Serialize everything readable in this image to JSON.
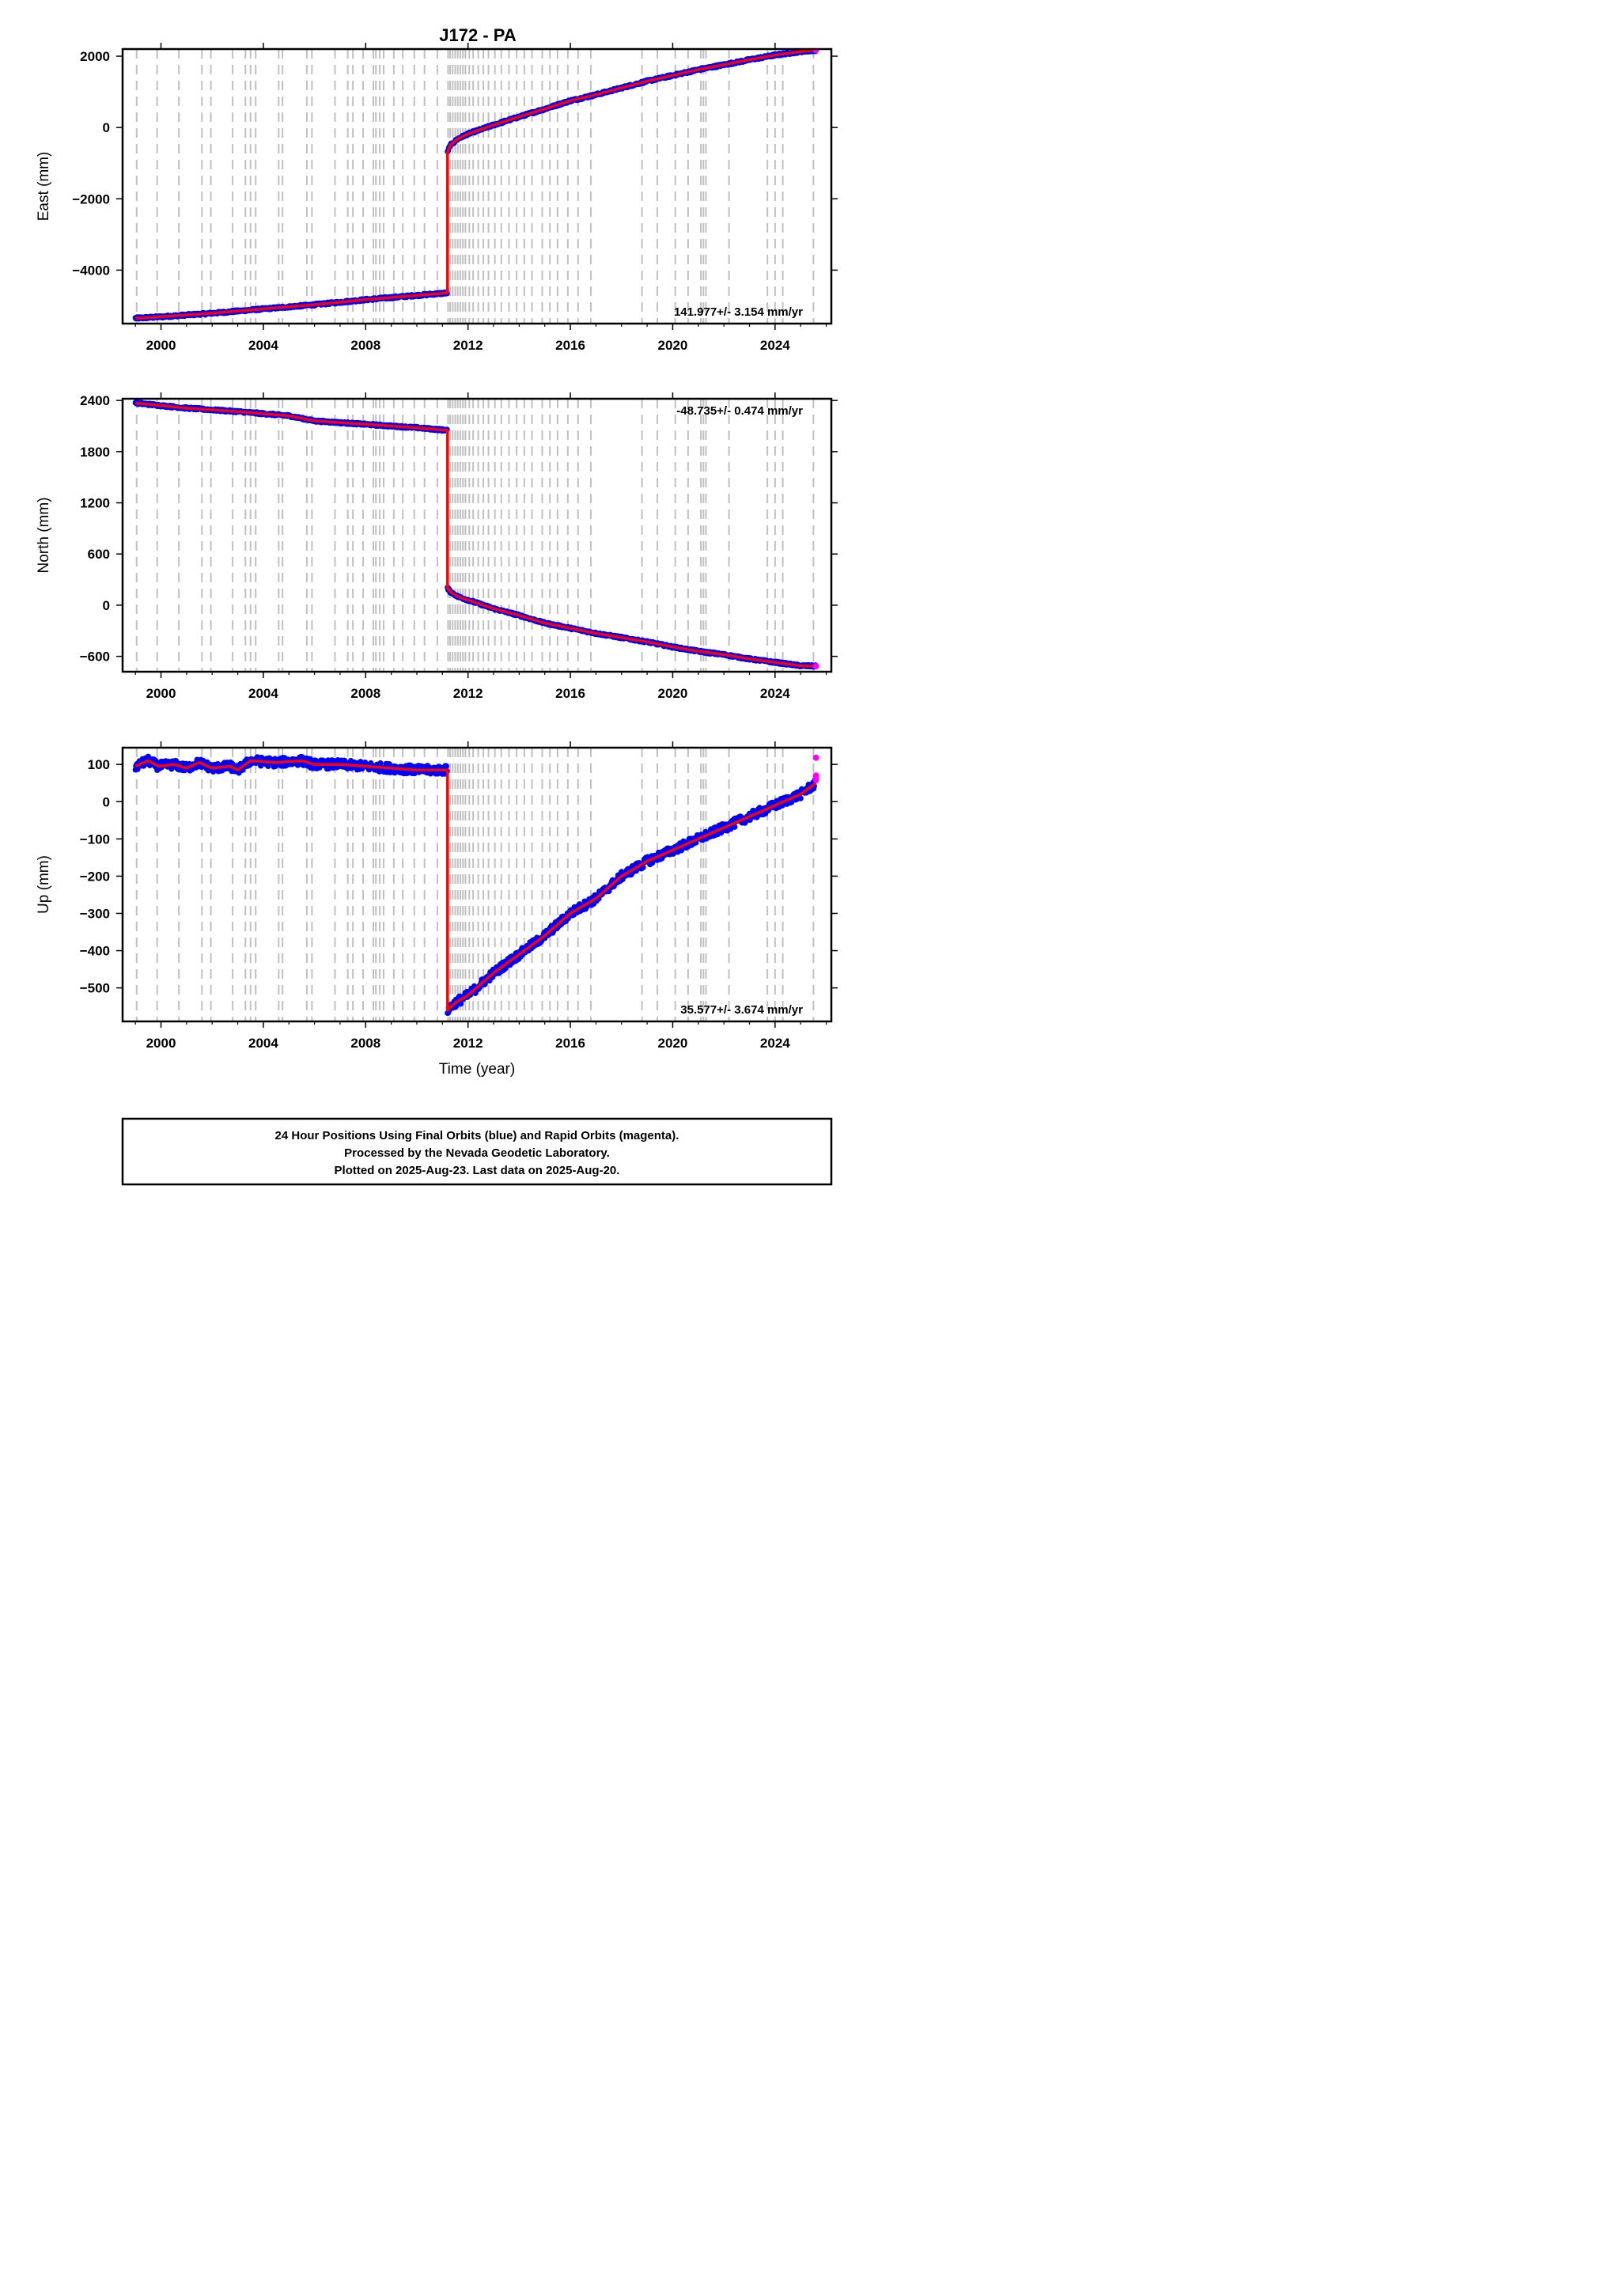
{
  "title": "J172 - PA",
  "footer": {
    "line1": "24 Hour Positions Using Final Orbits (blue) and Rapid Orbits (magenta).",
    "line2": "Processed by the Nevada Geodetic Laboratory.",
    "line3": "Plotted on 2025-Aug-23. Last data on 2025-Aug-20."
  },
  "colors": {
    "final_orbits": "#0000ff",
    "rapid_orbits": "#ff00ff",
    "model": "#ff0000",
    "equipment_change_lines": "#c0c0c0"
  },
  "chart_data": [
    {
      "type": "scatter",
      "ylabel": "East (mm)",
      "xlabel": "",
      "xlim": [
        1998.5,
        2026.2
      ],
      "ylim": [
        -5500,
        2200
      ],
      "yticks": [
        2000,
        0,
        -2000,
        -4000
      ],
      "ytick_labels": [
        "2000",
        "0",
        "−2000",
        "−4000"
      ],
      "xticks": [
        2000,
        2004,
        2008,
        2012,
        2016,
        2020,
        2024
      ],
      "rate_label": "141.977+/- 3.154 mm/yr",
      "rate_position": "bottom-right",
      "grid": false,
      "series": [
        {
          "points": [
            [
              1999.0,
              -5350
            ],
            [
              2000.0,
              -5310
            ],
            [
              2002.0,
              -5210
            ],
            [
              2004.0,
              -5090
            ],
            [
              2006.0,
              -4970
            ],
            [
              2008.0,
              -4830
            ],
            [
              2010.0,
              -4710
            ],
            [
              2011.2,
              -4640
            ],
            [
              2011.2,
              -700
            ],
            [
              2011.3,
              -500
            ],
            [
              2011.6,
              -320
            ],
            [
              2012.0,
              -180
            ],
            [
              2013.0,
              70
            ],
            [
              2014.0,
              300
            ],
            [
              2015.0,
              520
            ],
            [
              2016.0,
              750
            ],
            [
              2017.0,
              920
            ],
            [
              2018.0,
              1110
            ],
            [
              2019.0,
              1300
            ],
            [
              2020.0,
              1460
            ],
            [
              2021.0,
              1620
            ],
            [
              2022.0,
              1760
            ],
            [
              2023.0,
              1900
            ],
            [
              2024.0,
              2030
            ],
            [
              2025.0,
              2130
            ],
            [
              2025.6,
              2170
            ]
          ]
        }
      ],
      "rapid_points": [
        [
          2025.6,
          2170
        ]
      ]
    },
    {
      "type": "scatter",
      "ylabel": "North (mm)",
      "xlabel": "",
      "xlim": [
        1998.5,
        2026.2
      ],
      "ylim": [
        -780,
        2420
      ],
      "yticks": [
        2400,
        1800,
        1200,
        600,
        0,
        -600
      ],
      "ytick_labels": [
        "2400",
        "1800",
        "1200",
        "600",
        "0",
        "−600"
      ],
      "xticks": [
        2000,
        2004,
        2008,
        2012,
        2016,
        2020,
        2024
      ],
      "rate_label": "-48.735+/- 0.474 mm/yr",
      "rate_position": "top-right",
      "grid": false,
      "series": [
        {
          "points": [
            [
              1999.0,
              2370
            ],
            [
              2001.0,
              2310
            ],
            [
              2003.0,
              2270
            ],
            [
              2005.0,
              2220
            ],
            [
              2006.0,
              2160
            ],
            [
              2008.0,
              2120
            ],
            [
              2010.0,
              2080
            ],
            [
              2011.2,
              2050
            ],
            [
              2011.2,
              200
            ],
            [
              2011.3,
              160
            ],
            [
              2011.6,
              100
            ],
            [
              2012.0,
              60
            ],
            [
              2013.0,
              -40
            ],
            [
              2014.0,
              -120
            ],
            [
              2015.0,
              -210
            ],
            [
              2016.0,
              -270
            ],
            [
              2017.0,
              -330
            ],
            [
              2018.0,
              -380
            ],
            [
              2019.0,
              -430
            ],
            [
              2020.0,
              -490
            ],
            [
              2021.0,
              -540
            ],
            [
              2022.0,
              -580
            ],
            [
              2023.0,
              -630
            ],
            [
              2024.0,
              -670
            ],
            [
              2025.0,
              -710
            ],
            [
              2025.6,
              -715
            ]
          ]
        }
      ],
      "rapid_points": [
        [
          2025.6,
          -715
        ]
      ]
    },
    {
      "type": "scatter",
      "ylabel": "Up (mm)",
      "xlabel": "Time (year)",
      "xlim": [
        1998.5,
        2026.2
      ],
      "ylim": [
        -590,
        145
      ],
      "yticks": [
        100,
        0,
        -100,
        -200,
        -300,
        -400,
        -500
      ],
      "ytick_labels": [
        "100",
        "0",
        "−100",
        "−200",
        "−300",
        "−400",
        "−500"
      ],
      "xticks": [
        2000,
        2004,
        2008,
        2012,
        2016,
        2020,
        2024
      ],
      "rate_label": "35.577+/- 3.674 mm/yr",
      "rate_position": "bottom-right",
      "grid": false,
      "series": [
        {
          "points": [
            [
              1999.0,
              95
            ],
            [
              1999.5,
              110
            ],
            [
              1999.9,
              95
            ],
            [
              2000.5,
              100
            ],
            [
              2001.0,
              90
            ],
            [
              2001.5,
              105
            ],
            [
              2002.0,
              90
            ],
            [
              2002.7,
              95
            ],
            [
              2003.0,
              85
            ],
            [
              2003.5,
              110
            ],
            [
              2004.5,
              105
            ],
            [
              2005.5,
              110
            ],
            [
              2006.0,
              100
            ],
            [
              2007.0,
              100
            ],
            [
              2008.0,
              95
            ],
            [
              2009.0,
              90
            ],
            [
              2010.0,
              85
            ],
            [
              2011.0,
              85
            ],
            [
              2011.2,
              85
            ],
            [
              2011.2,
              -560
            ],
            [
              2011.5,
              -540
            ],
            [
              2012.0,
              -520
            ],
            [
              2013.0,
              -460
            ],
            [
              2014.0,
              -410
            ],
            [
              2015.0,
              -360
            ],
            [
              2016.0,
              -300
            ],
            [
              2017.0,
              -260
            ],
            [
              2018.0,
              -200
            ],
            [
              2019.0,
              -160
            ],
            [
              2020.0,
              -130
            ],
            [
              2021.0,
              -100
            ],
            [
              2022.0,
              -70
            ],
            [
              2023.0,
              -40
            ],
            [
              2024.0,
              -10
            ],
            [
              2025.0,
              20
            ],
            [
              2025.6,
              50
            ]
          ]
        }
      ],
      "rapid_points": [
        [
          2025.6,
          118
        ],
        [
          2025.6,
          70
        ],
        [
          2025.6,
          65
        ],
        [
          2025.6,
          58
        ]
      ]
    }
  ],
  "equipment_change_years": [
    1999.05,
    1999.85,
    2000.7,
    2001.6,
    2001.95,
    2002.8,
    2003.3,
    2003.5,
    2003.7,
    2004.6,
    2004.75,
    2005.7,
    2005.9,
    2006.8,
    2007.3,
    2007.5,
    2007.9,
    2008.3,
    2008.4,
    2008.55,
    2008.7,
    2009.1,
    2009.45,
    2009.9,
    2010.3,
    2010.8,
    2011.22,
    2011.3,
    2011.4,
    2011.5,
    2011.6,
    2011.7,
    2011.8,
    2011.9,
    2012.05,
    2012.2,
    2012.4,
    2012.6,
    2012.8,
    2013.05,
    2013.3,
    2013.6,
    2013.9,
    2014.2,
    2014.5,
    2014.9,
    2015.2,
    2015.5,
    2015.9,
    2016.3,
    2016.8,
    2018.8,
    2019.4,
    2020.1,
    2020.6,
    2021.1,
    2021.2,
    2021.3,
    2022.2,
    2023.7,
    2024.0,
    2024.3,
    2025.5
  ]
}
